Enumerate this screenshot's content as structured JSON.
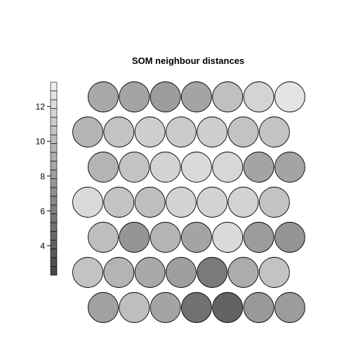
{
  "chart_data": {
    "type": "heatmap",
    "title": "SOM neighbour distances",
    "grid": {
      "rows": 7,
      "cols": 7,
      "topology": "hexagonal"
    },
    "scale": {
      "min": 2.3,
      "max": 13.4,
      "ticks": [
        4,
        6,
        8,
        10,
        12
      ],
      "color_low": "#444444",
      "color_high": "#f0f0f0"
    },
    "values_top_to_bottom": [
      [
        8.8,
        8.5,
        8.0,
        8.5,
        10.3,
        11.6,
        12.6
      ],
      [
        9.5,
        10.5,
        11.2,
        11.0,
        11.2,
        10.5,
        10.5
      ],
      [
        9.5,
        10.5,
        11.5,
        12.0,
        11.8,
        8.5,
        8.5
      ],
      [
        12.0,
        10.5,
        10.2,
        11.5,
        11.5,
        11.5,
        10.5
      ],
      [
        10.2,
        7.5,
        9.5,
        8.5,
        12.0,
        8.0,
        7.5
      ],
      [
        10.5,
        9.5,
        8.8,
        8.2,
        5.8,
        9.0,
        10.5
      ],
      [
        8.3,
        10.2,
        8.5,
        5.2,
        4.3,
        7.8,
        8.0
      ]
    ]
  }
}
